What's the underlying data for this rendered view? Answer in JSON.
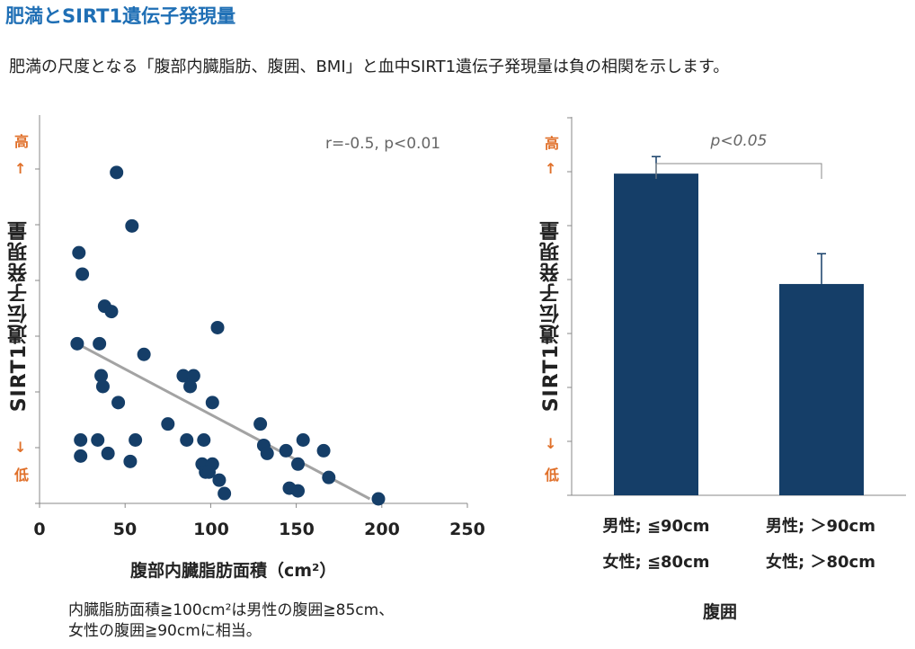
{
  "header": {
    "title": "肥満とSIRT1遺伝子発現量",
    "subtitle": "肥満の尺度となる「腹部内臓脂肪、腹囲、BMI」と血中SIRT1遺伝子発現量は負の相関を示します。"
  },
  "chart_data": [
    {
      "type": "scatter",
      "ylabel": "SIRT1遺伝子発現量",
      "y_high_label": "高",
      "y_low_label": "低",
      "y_high_arrow": "↑",
      "y_low_arrow": "↓",
      "xlabel": "腹部内臓脂肪面積（cm²）",
      "xlim": [
        0,
        250
      ],
      "xticks": [
        0,
        50,
        100,
        150,
        200,
        250
      ],
      "annotation": "r=-0.5, p<0.01",
      "trendline": {
        "x": [
          22,
          193
        ],
        "y": [
          2.9,
          0
        ]
      },
      "ylim": [
        0,
        6.5
      ],
      "points": [
        {
          "x": 45,
          "y": 6.1
        },
        {
          "x": 54,
          "y": 5.1
        },
        {
          "x": 23,
          "y": 4.6
        },
        {
          "x": 25,
          "y": 4.2
        },
        {
          "x": 38,
          "y": 3.6
        },
        {
          "x": 42,
          "y": 3.5
        },
        {
          "x": 104,
          "y": 3.2
        },
        {
          "x": 22,
          "y": 2.9
        },
        {
          "x": 35,
          "y": 2.9
        },
        {
          "x": 61,
          "y": 2.7
        },
        {
          "x": 36,
          "y": 2.3
        },
        {
          "x": 84,
          "y": 2.3
        },
        {
          "x": 90,
          "y": 2.3
        },
        {
          "x": 37,
          "y": 2.1
        },
        {
          "x": 88,
          "y": 2.1
        },
        {
          "x": 46,
          "y": 1.8
        },
        {
          "x": 101,
          "y": 1.8
        },
        {
          "x": 75,
          "y": 1.4
        },
        {
          "x": 129,
          "y": 1.4
        },
        {
          "x": 24,
          "y": 1.1
        },
        {
          "x": 34,
          "y": 1.1
        },
        {
          "x": 56,
          "y": 1.1
        },
        {
          "x": 86,
          "y": 1.1
        },
        {
          "x": 96,
          "y": 1.1
        },
        {
          "x": 154,
          "y": 1.1
        },
        {
          "x": 131,
          "y": 1.0
        },
        {
          "x": 24,
          "y": 0.8
        },
        {
          "x": 40,
          "y": 0.85
        },
        {
          "x": 133,
          "y": 0.85
        },
        {
          "x": 144,
          "y": 0.9
        },
        {
          "x": 166,
          "y": 0.9
        },
        {
          "x": 53,
          "y": 0.7
        },
        {
          "x": 95,
          "y": 0.65
        },
        {
          "x": 101,
          "y": 0.65
        },
        {
          "x": 97,
          "y": 0.5
        },
        {
          "x": 99,
          "y": 0.5
        },
        {
          "x": 151,
          "y": 0.65
        },
        {
          "x": 105,
          "y": 0.35
        },
        {
          "x": 169,
          "y": 0.4
        },
        {
          "x": 108,
          "y": 0.1
        },
        {
          "x": 146,
          "y": 0.2
        },
        {
          "x": 151,
          "y": 0.15
        },
        {
          "x": 198,
          "y": 0.0
        }
      ]
    },
    {
      "type": "bar",
      "ylabel": "SIRT1遺伝子発現量",
      "y_high_label": "高",
      "y_low_label": "低",
      "y_high_arrow": "↑",
      "y_low_arrow": "↓",
      "xlabel": "腹囲",
      "ylim": [
        0,
        6.0
      ],
      "categories": [
        [
          "男性; ≦90cm",
          "女性; ≦80cm"
        ],
        [
          "男性; ＞90cm",
          "女性; ＞80cm"
        ]
      ],
      "values": [
        5.1,
        3.35
      ],
      "errors": [
        0.27,
        0.48
      ],
      "bar_color": "#153e68",
      "significance": "p<0.05"
    }
  ],
  "footnote": {
    "line1": "内臓脂肪面積≧100cm²は男性の腹囲≧85cm、",
    "line2": "女性の腹囲≧90cmに相当。"
  }
}
